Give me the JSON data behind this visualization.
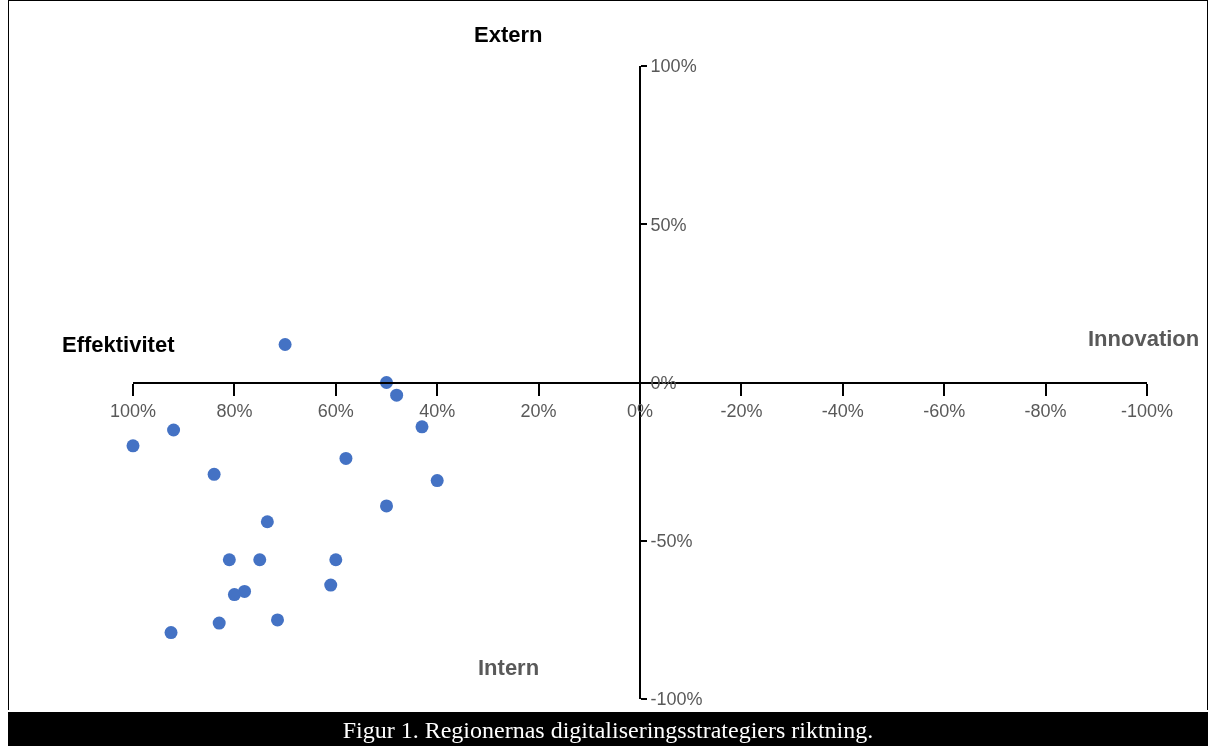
{
  "chart_data": {
    "type": "scatter",
    "annotations": [
      "Extern",
      "Intern",
      "Effektivitet",
      "Innovation",
      "Figur 1. Regionernas digitaliseringsstrategiers riktning."
    ],
    "x": [
      70,
      50,
      48,
      43,
      92,
      100,
      58,
      40,
      84,
      50,
      73.5,
      81,
      75,
      60,
      61,
      78,
      80,
      83,
      71.5,
      92.5
    ],
    "series": [
      {
        "color": "#4472c4",
        "values": [
          12,
          0,
          -4,
          -14,
          -15,
          -20,
          -24,
          -31,
          -29,
          -39,
          -44,
          -56,
          -56,
          -56,
          -64,
          -66,
          -67,
          -76,
          -75,
          -79
        ]
      }
    ],
    "xlim": [
      100,
      -100
    ],
    "xticks": [
      {
        "value": 100,
        "label": "100%"
      },
      {
        "value": 80,
        "label": "80%"
      },
      {
        "value": 60,
        "label": "60%"
      },
      {
        "value": 40,
        "label": "40%"
      },
      {
        "value": 20,
        "label": "20%"
      },
      {
        "value": 0,
        "label": "0%"
      },
      {
        "value": -20,
        "label": "-20%"
      },
      {
        "value": -40,
        "label": "-40%"
      },
      {
        "value": -60,
        "label": "-60%"
      },
      {
        "value": -80,
        "label": "-80%"
      },
      {
        "value": -100,
        "label": "-100%"
      }
    ],
    "ylim": [
      -100,
      100
    ],
    "yticks": [
      {
        "value": 100,
        "label": "100%"
      },
      {
        "value": 50,
        "label": "50%"
      },
      {
        "value": 0,
        "label": "0%"
      },
      {
        "value": -50,
        "label": "-50%"
      },
      {
        "value": -100,
        "label": "-100%"
      }
    ],
    "grid": false,
    "marker": "circle"
  }
}
